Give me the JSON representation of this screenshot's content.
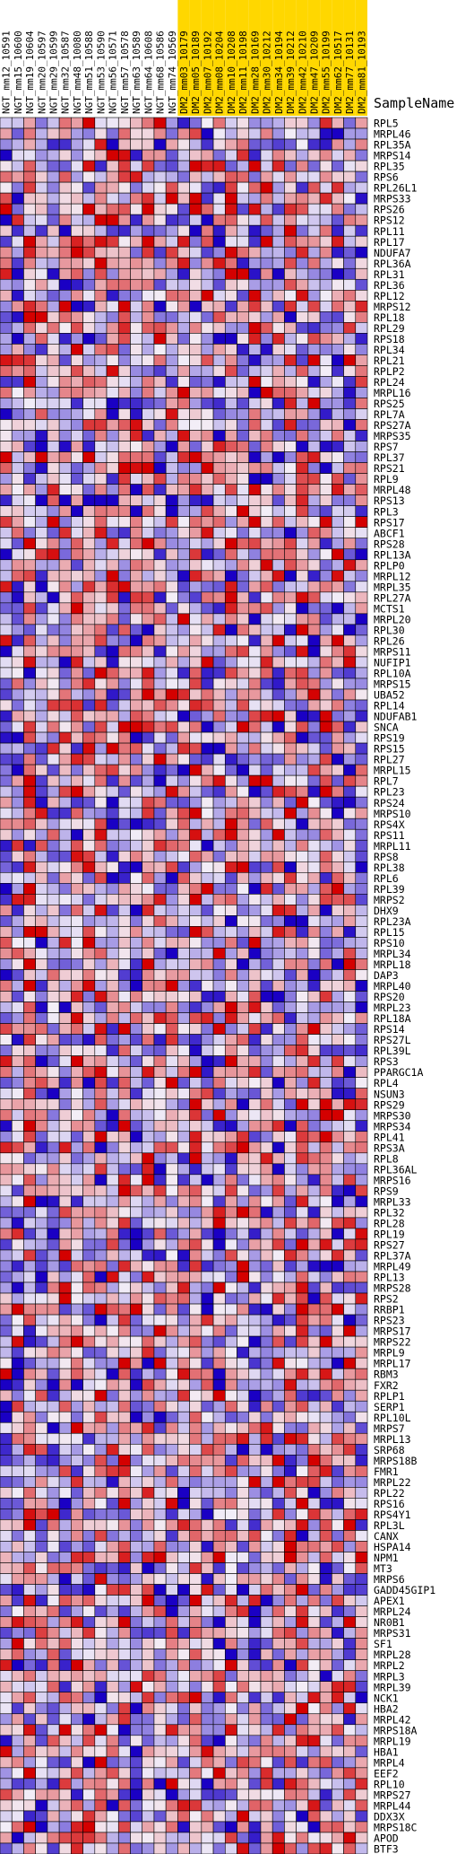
{
  "chart_data": {
    "type": "heatmap",
    "legend_title": "SampleName",
    "columns": [
      {
        "name": "NGT_mm12_10591",
        "group": "NGT"
      },
      {
        "name": "NGT_mm15_10600",
        "group": "NGT"
      },
      {
        "name": "NGT_mm19_10604",
        "group": "NGT"
      },
      {
        "name": "NGT_mm20_10597",
        "group": "NGT"
      },
      {
        "name": "NGT_mm29_10599",
        "group": "NGT"
      },
      {
        "name": "NGT_mm32_10587",
        "group": "NGT"
      },
      {
        "name": "NGT_mm48_10080",
        "group": "NGT"
      },
      {
        "name": "NGT_mm51_10588",
        "group": "NGT"
      },
      {
        "name": "NGT_mm53_10590",
        "group": "NGT"
      },
      {
        "name": "NGT_mm56_10571",
        "group": "NGT"
      },
      {
        "name": "NGT_mm57_10578",
        "group": "NGT"
      },
      {
        "name": "NGT_mm63_10589",
        "group": "NGT"
      },
      {
        "name": "NGT_mm64_10608",
        "group": "NGT"
      },
      {
        "name": "NGT_mm68_10586",
        "group": "NGT"
      },
      {
        "name": "NGT_mm74_10569",
        "group": "NGT"
      },
      {
        "name": "DM2_mm03_10179",
        "group": "DM2"
      },
      {
        "name": "DM2_mm05_10189",
        "group": "DM2"
      },
      {
        "name": "DM2_mm07_10192",
        "group": "DM2"
      },
      {
        "name": "DM2_mm08_10204",
        "group": "DM2"
      },
      {
        "name": "DM2_mm10_10208",
        "group": "DM2"
      },
      {
        "name": "DM2_mm11_10198",
        "group": "DM2"
      },
      {
        "name": "DM2_mm28_10169",
        "group": "DM2"
      },
      {
        "name": "DM2_mm30_10212",
        "group": "DM2"
      },
      {
        "name": "DM2_mm34_10194",
        "group": "DM2"
      },
      {
        "name": "DM2_mm39_10212",
        "group": "DM2"
      },
      {
        "name": "DM2_mm42_10210",
        "group": "DM2"
      },
      {
        "name": "DM2_mm47_10209",
        "group": "DM2"
      },
      {
        "name": "DM2_mm55_10199",
        "group": "DM2"
      },
      {
        "name": "DM2_mm62_10517",
        "group": "DM2"
      },
      {
        "name": "DM2_mm77_10131",
        "group": "DM2"
      },
      {
        "name": "DM2_mm81_10193",
        "group": "DM2"
      }
    ],
    "rows": [
      "RPL5",
      "MRPL46",
      "RPL35A",
      "MRPS14",
      "RPL35",
      "RPS6",
      "RPL26L1",
      "MRPS33",
      "RPS26",
      "RPS12",
      "RPL11",
      "RPL17",
      "NDUFA7",
      "RPL36A",
      "RPL31",
      "RPL36",
      "RPL12",
      "MRPS12",
      "RPL18",
      "RPL29",
      "RPS18",
      "RPL34",
      "RPL21",
      "RPLP2",
      "RPL24",
      "MRPL16",
      "RPS25",
      "RPL7A",
      "RPS27A",
      "MRPS35",
      "RPS7",
      "RPL37",
      "RPS21",
      "RPL9",
      "MRPL48",
      "RPS13",
      "RPL3",
      "RPS17",
      "ABCF1",
      "RPS28",
      "RPL13A",
      "RPLP0",
      "MRPL12",
      "MRPL35",
      "RPL27A",
      "MCTS1",
      "MRPL20",
      "RPL30",
      "RPL26",
      "MRPS11",
      "NUFIP1",
      "RPL10A",
      "MRPS15",
      "UBA52",
      "RPL14",
      "NDUFAB1",
      "SNCA",
      "RPS19",
      "RPS15",
      "RPL27",
      "MRPL15",
      "RPL7",
      "RPL23",
      "RPS24",
      "MRPS10",
      "RPS4X",
      "RPS11",
      "MRPL11",
      "RPS8",
      "RPL38",
      "RPL6",
      "RPL39",
      "MRPS2",
      "DHX9",
      "RPL23A",
      "RPL15",
      "RPS10",
      "MRPL34",
      "MRPL18",
      "DAP3",
      "MRPL40",
      "RPS20",
      "MRPL23",
      "RPL18A",
      "RPS14",
      "RPS27L",
      "RPL39L",
      "RPS3",
      "PPARGC1A",
      "RPL4",
      "NSUN3",
      "RPS29",
      "MRPS30",
      "MRPS34",
      "RPL41",
      "RPS3A",
      "RPL8",
      "RPL36AL",
      "MRPS16",
      "RPS9",
      "MRPL33",
      "RPL32",
      "RPL28",
      "RPL19",
      "RPS27",
      "RPL37A",
      "MRPL49",
      "RPL13",
      "MRPS28",
      "RPS2",
      "RRBP1",
      "RPS23",
      "MRPS17",
      "MRPS22",
      "MRPL9",
      "MRPL17",
      "RBM3",
      "FXR2",
      "RPLP1",
      "SERP1",
      "RPL10L",
      "MRPS7",
      "MRPL13",
      "SRP68",
      "MRPS18B",
      "FMR1",
      "MRPL22",
      "RPL22",
      "RPS16",
      "RPS4Y1",
      "RPL3L",
      "CANX",
      "HSPA14",
      "NPM1",
      "MT3",
      "MRPS6",
      "GADD45GIP1",
      "APEX1",
      "MRPL24",
      "NR0B1",
      "MRPS31",
      "SF1",
      "MRPL28",
      "MRPL2",
      "MRPL3",
      "MRPL39",
      "NCK1",
      "HBA2",
      "MRPL42",
      "MRPS18A",
      "MRPL19",
      "HBA1",
      "MRPL4",
      "EEF2",
      "RPL10",
      "MRPS27",
      "MRPL44",
      "DDX3X",
      "MRPS18C",
      "APOD",
      "BTF3"
    ],
    "color_scale": {
      "low": "#1a00c4",
      "mid": "#f3eef7",
      "high": "#d40000",
      "range": [
        -1,
        1
      ]
    },
    "group_colors": {
      "NGT": "#ffffff",
      "DM2": "#ffd700"
    },
    "value_note": "z-scored expression, estimated",
    "seed": 20517
  }
}
